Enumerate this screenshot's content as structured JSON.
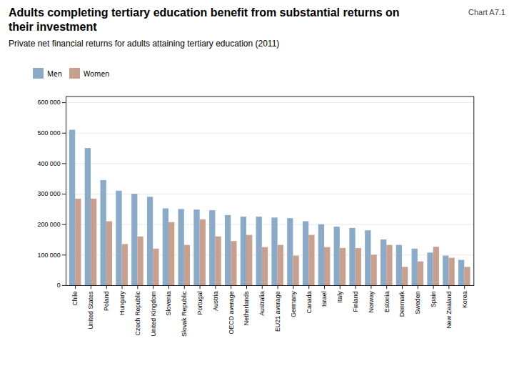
{
  "chart_data": {
    "type": "bar",
    "title": "Adults completing tertiary education benefit from substantial returns on their investment",
    "subtitle": "Private net financial returns for adults attaining tertiary education (2011)",
    "annotations": [
      "Chart A7.1"
    ],
    "categories": [
      "Chile",
      "United States",
      "Poland",
      "Hungary",
      "Czech Republic",
      "United Kingdom",
      "Slovenia",
      "Slovak Republic",
      "Portugal",
      "Austria",
      "OECD average",
      "Netherlands",
      "Australia",
      "EU21 average",
      "Germany",
      "Canada",
      "Israel",
      "Italy",
      "Finland",
      "Norway",
      "Estonia",
      "Denmark",
      "Sweden",
      "Spain",
      "New Zealand",
      "Korea"
    ],
    "series": [
      {
        "name": "Men",
        "color": "#8aaac8",
        "values": [
          510000,
          450000,
          345000,
          310000,
          300000,
          290000,
          252000,
          250000,
          248000,
          246000,
          230000,
          225000,
          225000,
          222000,
          220000,
          210000,
          200000,
          192000,
          188000,
          180000,
          150000,
          132000,
          120000,
          107000,
          97000,
          83000
        ]
      },
      {
        "name": "Women",
        "color": "#c8a090",
        "values": [
          284000,
          284000,
          210000,
          135000,
          160000,
          120000,
          207000,
          132000,
          216000,
          160000,
          145000,
          165000,
          125000,
          132000,
          97000,
          165000,
          125000,
          122000,
          122000,
          100000,
          132000,
          60000,
          78000,
          126000,
          90000,
          60000
        ]
      }
    ],
    "ylim": [
      0,
      620000
    ],
    "yticks": [
      0,
      {
        "value": 100000,
        "label": "100 000"
      },
      {
        "value": 200000,
        "label": "200 000"
      },
      {
        "value": 300000,
        "label": "300 000"
      },
      {
        "value": 400000,
        "label": "400 000"
      },
      {
        "value": 500000,
        "label": "500 000"
      },
      {
        "value": 600000,
        "label": "600 000"
      }
    ],
    "grid": true,
    "legend": "top"
  }
}
